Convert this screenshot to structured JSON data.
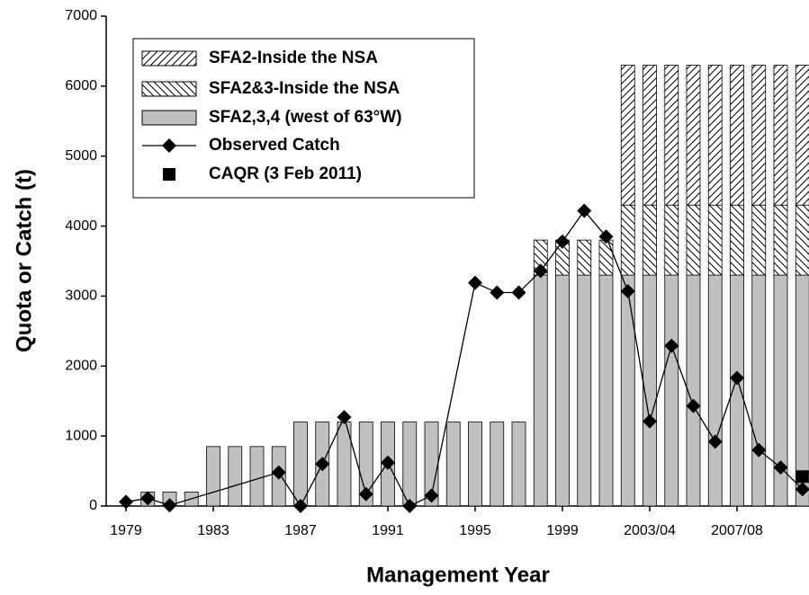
{
  "chart_data": {
    "type": "bar",
    "x_label": "Management Year",
    "y_label": "Quota or Catch (t)",
    "categories": [
      "1979",
      null,
      null,
      null,
      "1983",
      null,
      null,
      null,
      "1987",
      null,
      null,
      null,
      "1991",
      null,
      null,
      null,
      "1995",
      null,
      null,
      null,
      "1999",
      null,
      null,
      null,
      "2003/04",
      null,
      null,
      null,
      "2007/08",
      null,
      null,
      null
    ],
    "ylim": [
      0,
      7000
    ],
    "yticks": [
      0,
      1000,
      2000,
      3000,
      4000,
      5000,
      6000,
      7000
    ],
    "grid": false,
    "stacked": true,
    "legend_position": "upper left",
    "series": [
      {
        "name": "SFA2-Inside the NSA",
        "kind": "bar",
        "pattern": "forward-hatch",
        "color": "#000000",
        "values": [
          null,
          null,
          null,
          null,
          null,
          null,
          null,
          null,
          null,
          null,
          null,
          null,
          null,
          null,
          null,
          null,
          null,
          null,
          null,
          null,
          null,
          null,
          null,
          2000,
          2000,
          2000,
          2000,
          2000,
          2000,
          2000,
          2000,
          2000
        ]
      },
      {
        "name": "SFA2&3-Inside the NSA",
        "kind": "bar",
        "pattern": "back-hatch",
        "color": "#000000",
        "values": [
          null,
          null,
          null,
          null,
          null,
          null,
          null,
          null,
          null,
          null,
          null,
          null,
          null,
          null,
          null,
          null,
          null,
          null,
          null,
          500,
          500,
          500,
          500,
          1000,
          1000,
          1000,
          1000,
          1000,
          1000,
          1000,
          1000,
          1000
        ]
      },
      {
        "name": "SFA2,3,4 (west of 63°W)",
        "kind": "bar",
        "pattern": "solid",
        "color": "#c0c0c0",
        "values": [
          null,
          200,
          200,
          200,
          850,
          850,
          850,
          850,
          1200,
          1200,
          1200,
          1200,
          1200,
          1200,
          1200,
          1200,
          1200,
          1200,
          1200,
          3300,
          3300,
          3300,
          3300,
          3300,
          3300,
          3300,
          3300,
          3300,
          3300,
          3300,
          3300,
          3300
        ]
      },
      {
        "name": "Observed Catch",
        "kind": "line",
        "marker": "diamond",
        "connect_gaps": true,
        "color": "#000000",
        "values": [
          60,
          110,
          10,
          null,
          null,
          null,
          null,
          480,
          0,
          600,
          1270,
          170,
          620,
          0,
          150,
          null,
          3190,
          3050,
          3050,
          3360,
          3780,
          4220,
          3850,
          3070,
          1210,
          2290,
          1430,
          920,
          1830,
          800,
          550,
          240
        ]
      },
      {
        "name": "CAQR (3 Feb 2011)",
        "kind": "marker",
        "marker": "square",
        "color": "#000000",
        "values": [
          null,
          null,
          null,
          null,
          null,
          null,
          null,
          null,
          null,
          null,
          null,
          null,
          null,
          null,
          null,
          null,
          null,
          null,
          null,
          null,
          null,
          null,
          null,
          null,
          null,
          null,
          null,
          null,
          null,
          null,
          null,
          420
        ]
      }
    ]
  }
}
